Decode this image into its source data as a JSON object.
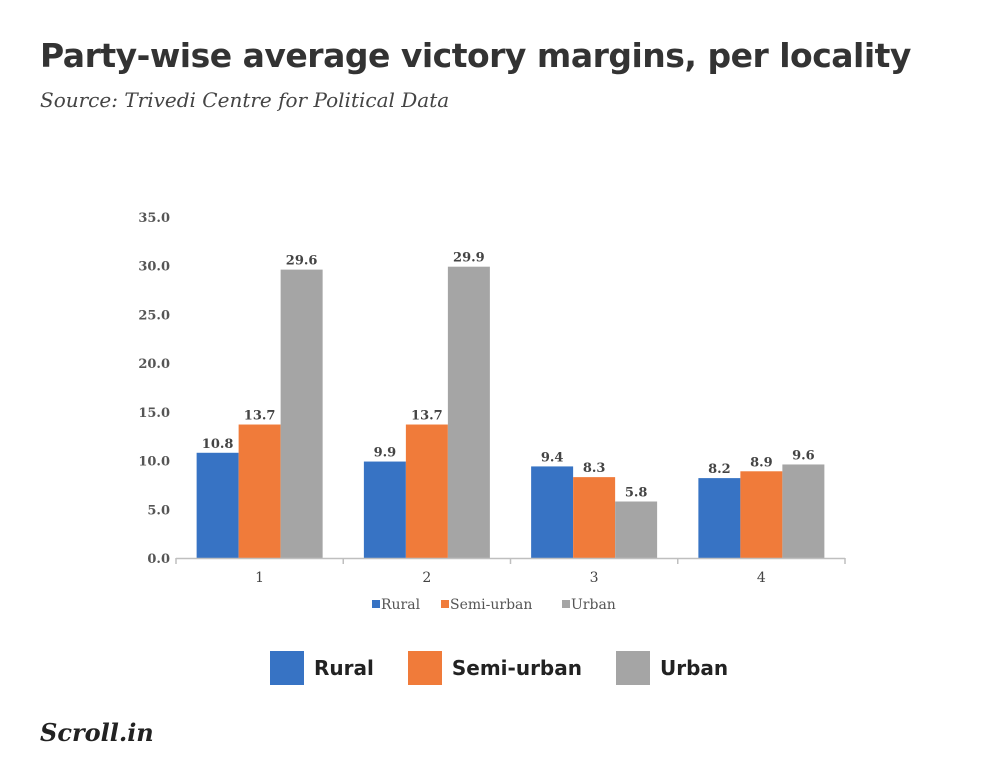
{
  "header": {
    "title": "Party-wise average victory margins, per locality",
    "subtitle": "Source: Trivedi Centre for Political Data"
  },
  "colors": {
    "rural": "#3773c4",
    "semi_urban": "#f07b3a",
    "urban": "#a5a5a5",
    "axis": "#bfbfbf"
  },
  "chart_data": {
    "type": "bar",
    "title": "Party-wise average victory margins, per locality",
    "subtitle": "Source: Trivedi Centre for Political Data",
    "xlabel": "",
    "ylabel": "",
    "categories": [
      "1",
      "2",
      "3",
      "4"
    ],
    "ylim": [
      0,
      35
    ],
    "yticks": [
      "0.0",
      "5.0",
      "10.0",
      "15.0",
      "20.0",
      "25.0",
      "30.0",
      "35.0"
    ],
    "grid": false,
    "legend_placement": "bottom",
    "series": [
      {
        "name": "Rural",
        "values": [
          10.8,
          9.9,
          9.4,
          8.2
        ],
        "labels": [
          "10.8",
          "9.9",
          "9.4",
          "8.2"
        ]
      },
      {
        "name": "Semi-urban",
        "values": [
          13.7,
          13.7,
          8.3,
          8.9
        ],
        "labels": [
          "13.7",
          "13.7",
          "8.3",
          "8.9"
        ]
      },
      {
        "name": "Urban",
        "values": [
          29.6,
          29.9,
          5.8,
          9.6
        ],
        "labels": [
          "29.6",
          "29.9",
          "5.8",
          "9.6"
        ]
      }
    ]
  },
  "legend": {
    "items": [
      {
        "label": "Rural",
        "color": "#3773c4"
      },
      {
        "label": "Semi-urban",
        "color": "#f07b3a"
      },
      {
        "label": "Urban",
        "color": "#a5a5a5"
      }
    ]
  },
  "footer": {
    "logo": "Scroll.in"
  }
}
